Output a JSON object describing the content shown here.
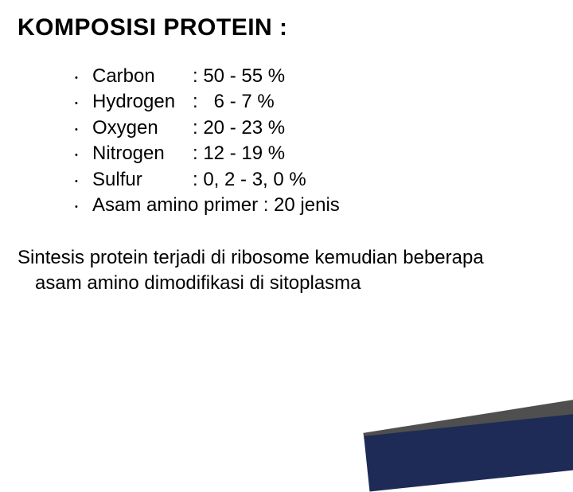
{
  "title": "KOMPOSISI PROTEIN :",
  "items": [
    {
      "name": "Carbon",
      "value": ": 50 - 55 %"
    },
    {
      "name": "Hydrogen",
      "value": ":   6 - 7 %"
    },
    {
      "name": "Oxygen",
      "value": ": 20 - 23 %"
    },
    {
      "name": "Nitrogen",
      "value": ": 12 - 19 %"
    },
    {
      "name": "Sulfur",
      "value": ": 0, 2 - 3, 0 %"
    }
  ],
  "final_item": "Asam amino primer : 20 jenis",
  "paragraph": "Sintesis protein terjadi di ribosome kemudian beberapa asam amino dimodifikasi di sitoplasma",
  "bullet_char": "•",
  "colors": {
    "background": "#ffffff",
    "text": "#000000",
    "accent_gray": "#4f4f4f",
    "accent_navy": "#1e2b57"
  },
  "fontsize": {
    "title": 30,
    "body": 24
  }
}
